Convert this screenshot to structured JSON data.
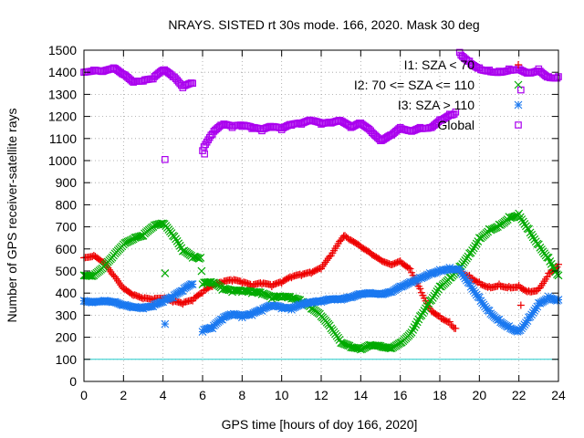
{
  "chart_data": {
    "type": "scatter",
    "title": "NRAYS. SISTED rt 30s mode. 166, 2020. Mask 30 deg",
    "xlabel": "GPS time [hours of doy 166, 2020]",
    "ylabel": "Number of GPS receiver-satellite rays",
    "xlim": [
      0,
      24
    ],
    "ylim": [
      0,
      1500
    ],
    "xticks": [
      0,
      2,
      4,
      6,
      8,
      10,
      12,
      14,
      16,
      18,
      20,
      22,
      24
    ],
    "yticks": [
      0,
      100,
      200,
      300,
      400,
      500,
      600,
      700,
      800,
      900,
      1000,
      1100,
      1200,
      1300,
      1400,
      1500
    ],
    "grid": true,
    "legend_position": "top-right",
    "reference_line": {
      "y": 100,
      "color": "#22cccc"
    },
    "series": [
      {
        "name": "I1: SZA < 70",
        "color": "#ee0000",
        "marker": "plus",
        "points": [
          [
            0,
            560
          ],
          [
            0.5,
            570
          ],
          [
            1,
            540
          ],
          [
            1.5,
            480
          ],
          [
            2,
            420
          ],
          [
            2.5,
            390
          ],
          [
            3,
            375
          ],
          [
            3.5,
            370
          ],
          [
            4,
            375
          ],
          [
            4.5,
            360
          ],
          [
            5,
            350
          ],
          [
            5.5,
            365
          ],
          [
            6,
            400
          ],
          [
            6.5,
            430
          ],
          [
            7,
            445
          ],
          [
            7.5,
            455
          ],
          [
            8,
            445
          ],
          [
            8.5,
            430
          ],
          [
            9,
            440
          ],
          [
            9.5,
            430
          ],
          [
            10,
            445
          ],
          [
            10.5,
            470
          ],
          [
            11,
            480
          ],
          [
            11.5,
            490
          ],
          [
            12,
            510
          ],
          [
            12.5,
            570
          ],
          [
            13,
            640
          ],
          [
            13.2,
            660
          ],
          [
            13.5,
            640
          ],
          [
            14,
            610
          ],
          [
            14.5,
            580
          ],
          [
            15,
            550
          ],
          [
            15.5,
            530
          ],
          [
            16,
            545
          ],
          [
            16.5,
            510
          ],
          [
            17,
            420
          ],
          [
            17.5,
            330
          ],
          [
            18,
            295
          ],
          [
            18.5,
            270
          ],
          [
            18.8,
            240
          ],
          [
            19,
            500
          ],
          [
            19.5,
            480
          ],
          [
            20,
            450
          ],
          [
            20.5,
            430
          ],
          [
            21,
            440
          ],
          [
            21.5,
            430
          ],
          [
            22,
            435
          ],
          [
            22.5,
            410
          ],
          [
            23,
            420
          ],
          [
            23.5,
            490
          ],
          [
            24,
            530
          ]
        ]
      },
      {
        "name": "I2: 70 <= SZA <= 110",
        "color": "#00aa00",
        "marker": "cross",
        "points": [
          [
            0,
            480
          ],
          [
            0.5,
            480
          ],
          [
            1,
            520
          ],
          [
            1.5,
            570
          ],
          [
            2,
            620
          ],
          [
            2.5,
            645
          ],
          [
            3,
            660
          ],
          [
            3.5,
            700
          ],
          [
            4,
            715
          ],
          [
            4.5,
            660
          ],
          [
            5,
            590
          ],
          [
            5.5,
            560
          ],
          [
            5.9,
            560
          ],
          [
            6,
            440
          ],
          [
            6.5,
            445
          ],
          [
            7,
            415
          ],
          [
            7.5,
            405
          ],
          [
            8,
            405
          ],
          [
            8.5,
            400
          ],
          [
            9,
            395
          ],
          [
            9.5,
            375
          ],
          [
            10,
            380
          ],
          [
            10.5,
            375
          ],
          [
            11,
            360
          ],
          [
            11.5,
            330
          ],
          [
            12,
            295
          ],
          [
            12.5,
            240
          ],
          [
            13,
            175
          ],
          [
            13.5,
            155
          ],
          [
            14,
            145
          ],
          [
            14.5,
            165
          ],
          [
            15,
            160
          ],
          [
            15.5,
            150
          ],
          [
            16,
            175
          ],
          [
            16.5,
            215
          ],
          [
            17,
            295
          ],
          [
            17.5,
            365
          ],
          [
            18,
            430
          ],
          [
            18.5,
            470
          ],
          [
            19,
            520
          ],
          [
            19.5,
            580
          ],
          [
            20,
            650
          ],
          [
            20.5,
            690
          ],
          [
            21,
            710
          ],
          [
            21.5,
            745
          ],
          [
            22,
            760
          ],
          [
            22.5,
            690
          ],
          [
            23,
            620
          ],
          [
            23.5,
            560
          ],
          [
            24,
            480
          ]
        ]
      },
      {
        "name": "I3: SZA > 110",
        "color": "#1a78f0",
        "marker": "star",
        "points": [
          [
            0,
            365
          ],
          [
            0.5,
            360
          ],
          [
            1,
            365
          ],
          [
            1.5,
            360
          ],
          [
            2,
            345
          ],
          [
            2.5,
            335
          ],
          [
            3,
            330
          ],
          [
            3.5,
            340
          ],
          [
            4,
            360
          ],
          [
            4.5,
            380
          ],
          [
            5,
            410
          ],
          [
            5.5,
            440
          ],
          [
            6,
            225
          ],
          [
            6.5,
            240
          ],
          [
            7,
            280
          ],
          [
            7.5,
            300
          ],
          [
            8,
            290
          ],
          [
            8.5,
            300
          ],
          [
            9,
            320
          ],
          [
            9.5,
            340
          ],
          [
            10,
            330
          ],
          [
            10.5,
            325
          ],
          [
            11,
            345
          ],
          [
            11.5,
            355
          ],
          [
            12,
            360
          ],
          [
            12.5,
            370
          ],
          [
            13,
            370
          ],
          [
            13.5,
            380
          ],
          [
            14,
            395
          ],
          [
            14.5,
            400
          ],
          [
            15,
            395
          ],
          [
            15.5,
            405
          ],
          [
            16,
            430
          ],
          [
            16.5,
            450
          ],
          [
            17,
            470
          ],
          [
            17.5,
            490
          ],
          [
            18,
            505
          ],
          [
            18.5,
            515
          ],
          [
            19,
            510
          ],
          [
            19.5,
            445
          ],
          [
            20,
            380
          ],
          [
            20.5,
            320
          ],
          [
            21,
            280
          ],
          [
            21.5,
            250
          ],
          [
            22,
            230
          ],
          [
            22.5,
            290
          ],
          [
            23,
            355
          ],
          [
            23.5,
            385
          ],
          [
            24,
            370
          ]
        ]
      },
      {
        "name": "Global",
        "color": "#aa00ee",
        "marker": "square",
        "points": [
          [
            0,
            1400
          ],
          [
            0.5,
            1410
          ],
          [
            1,
            1405
          ],
          [
            1.5,
            1420
          ],
          [
            2,
            1390
          ],
          [
            2.5,
            1355
          ],
          [
            3,
            1360
          ],
          [
            3.5,
            1370
          ],
          [
            4,
            1410
          ],
          [
            4.5,
            1380
          ],
          [
            5,
            1330
          ],
          [
            5.5,
            1350
          ],
          [
            6,
            1045
          ],
          [
            6.5,
            1120
          ],
          [
            7,
            1160
          ],
          [
            7.5,
            1150
          ],
          [
            8,
            1155
          ],
          [
            8.5,
            1145
          ],
          [
            9,
            1135
          ],
          [
            9.5,
            1150
          ],
          [
            10,
            1140
          ],
          [
            10.5,
            1160
          ],
          [
            11,
            1165
          ],
          [
            11.5,
            1180
          ],
          [
            12,
            1165
          ],
          [
            12.5,
            1170
          ],
          [
            13,
            1180
          ],
          [
            13.5,
            1150
          ],
          [
            14,
            1170
          ],
          [
            14.5,
            1135
          ],
          [
            15,
            1090
          ],
          [
            15.5,
            1115
          ],
          [
            16,
            1150
          ],
          [
            16.5,
            1135
          ],
          [
            17,
            1150
          ],
          [
            17.5,
            1150
          ],
          [
            18,
            1185
          ],
          [
            18.5,
            1210
          ],
          [
            18.8,
            1220
          ],
          [
            19,
            1490
          ],
          [
            19.5,
            1450
          ],
          [
            20,
            1420
          ],
          [
            20.5,
            1410
          ],
          [
            21,
            1405
          ],
          [
            21.5,
            1415
          ],
          [
            22,
            1420
          ],
          [
            22.5,
            1400
          ],
          [
            23,
            1415
          ],
          [
            23.5,
            1380
          ],
          [
            24,
            1380
          ]
        ]
      }
    ],
    "outliers": [
      {
        "series": "Global",
        "points": [
          [
            4.1,
            1005
          ],
          [
            6.1,
            1030
          ],
          [
            22.1,
            1320
          ]
        ]
      },
      {
        "series": "I2: 70 <= SZA <= 110",
        "points": [
          [
            4.1,
            490
          ]
        ]
      },
      {
        "series": "I3: SZA > 110",
        "points": [
          [
            4.1,
            260
          ]
        ]
      },
      {
        "series": "I1: SZA < 70",
        "points": [
          [
            22.1,
            345
          ]
        ]
      }
    ]
  }
}
